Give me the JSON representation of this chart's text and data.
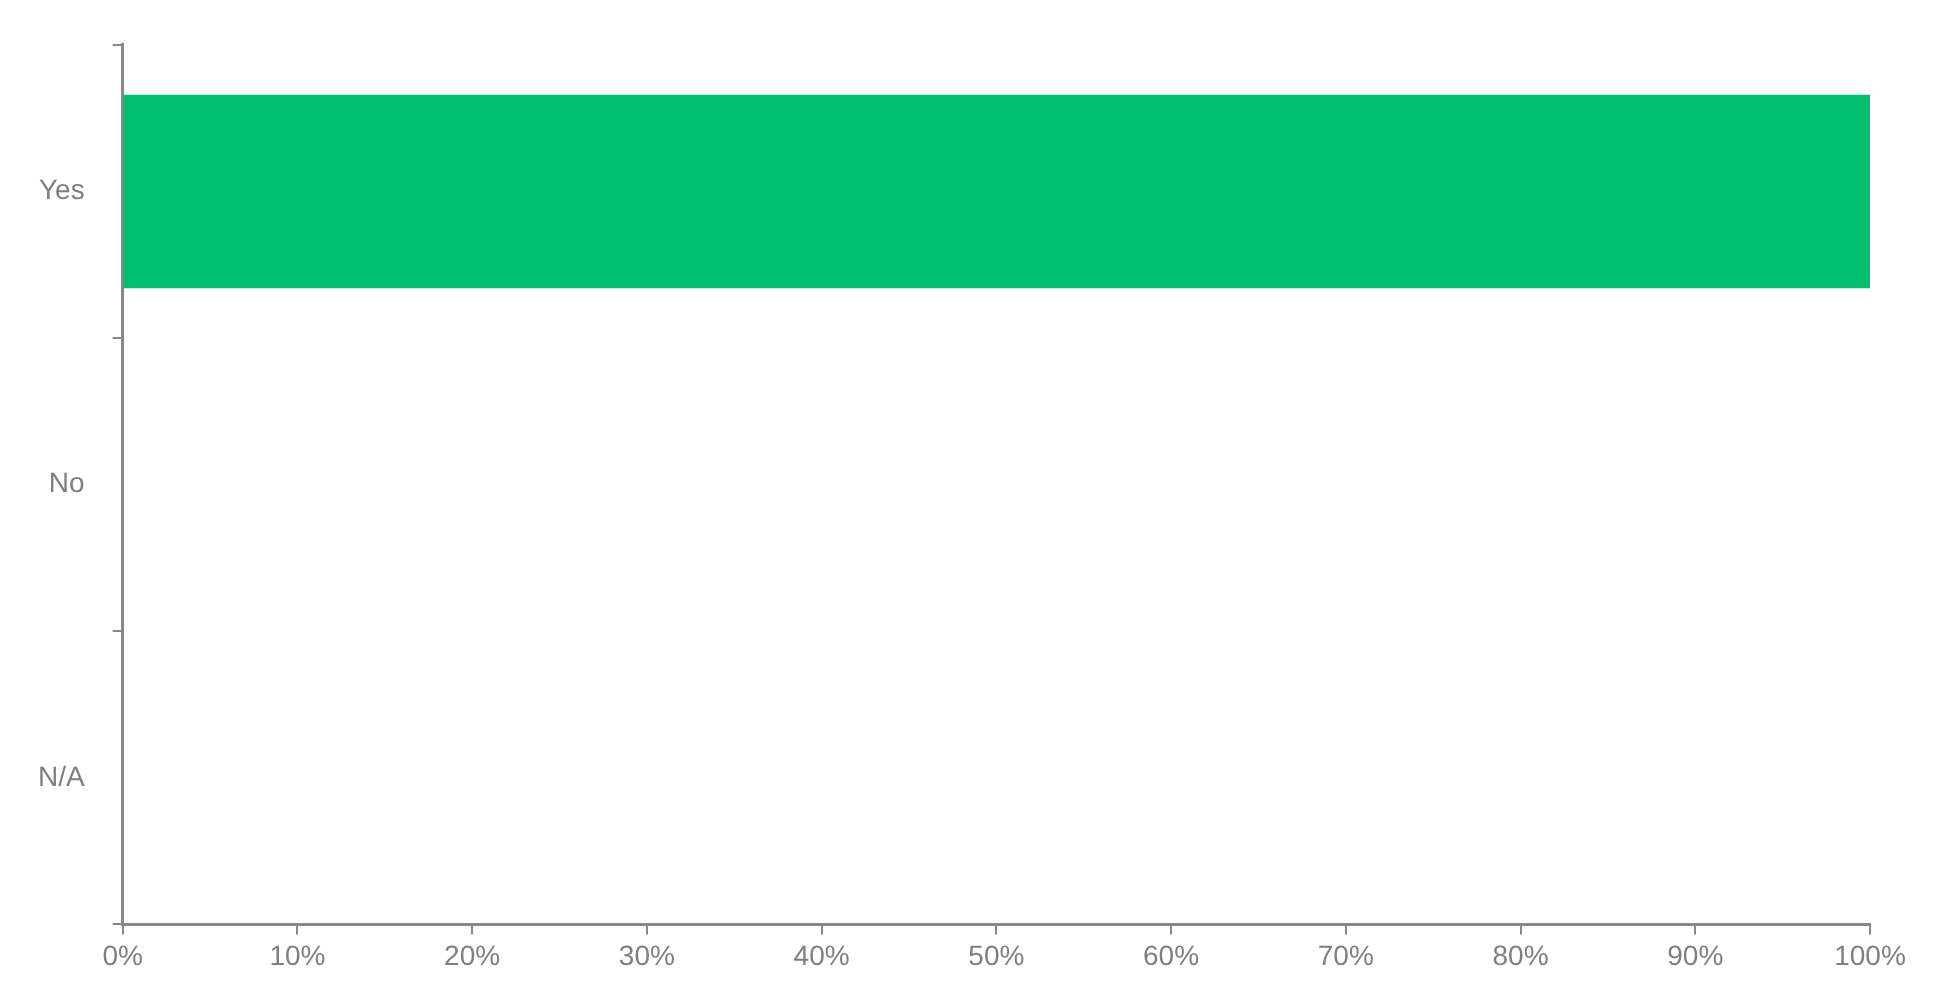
{
  "chart_data": {
    "type": "bar",
    "orientation": "horizontal",
    "categories": [
      "Yes",
      "No",
      "N/A"
    ],
    "values": [
      100,
      0,
      0
    ],
    "color": "#00bf6f",
    "xlim": [
      0,
      100
    ],
    "xticks": [
      {
        "value": 0,
        "label": "0%"
      },
      {
        "value": 10,
        "label": "10%"
      },
      {
        "value": 20,
        "label": "20%"
      },
      {
        "value": 30,
        "label": "30%"
      },
      {
        "value": 40,
        "label": "40%"
      },
      {
        "value": 50,
        "label": "50%"
      },
      {
        "value": 60,
        "label": "60%"
      },
      {
        "value": 70,
        "label": "70%"
      },
      {
        "value": 80,
        "label": "80%"
      },
      {
        "value": 90,
        "label": "90%"
      },
      {
        "value": 100,
        "label": "100%"
      }
    ],
    "grid": false,
    "legend": false
  }
}
